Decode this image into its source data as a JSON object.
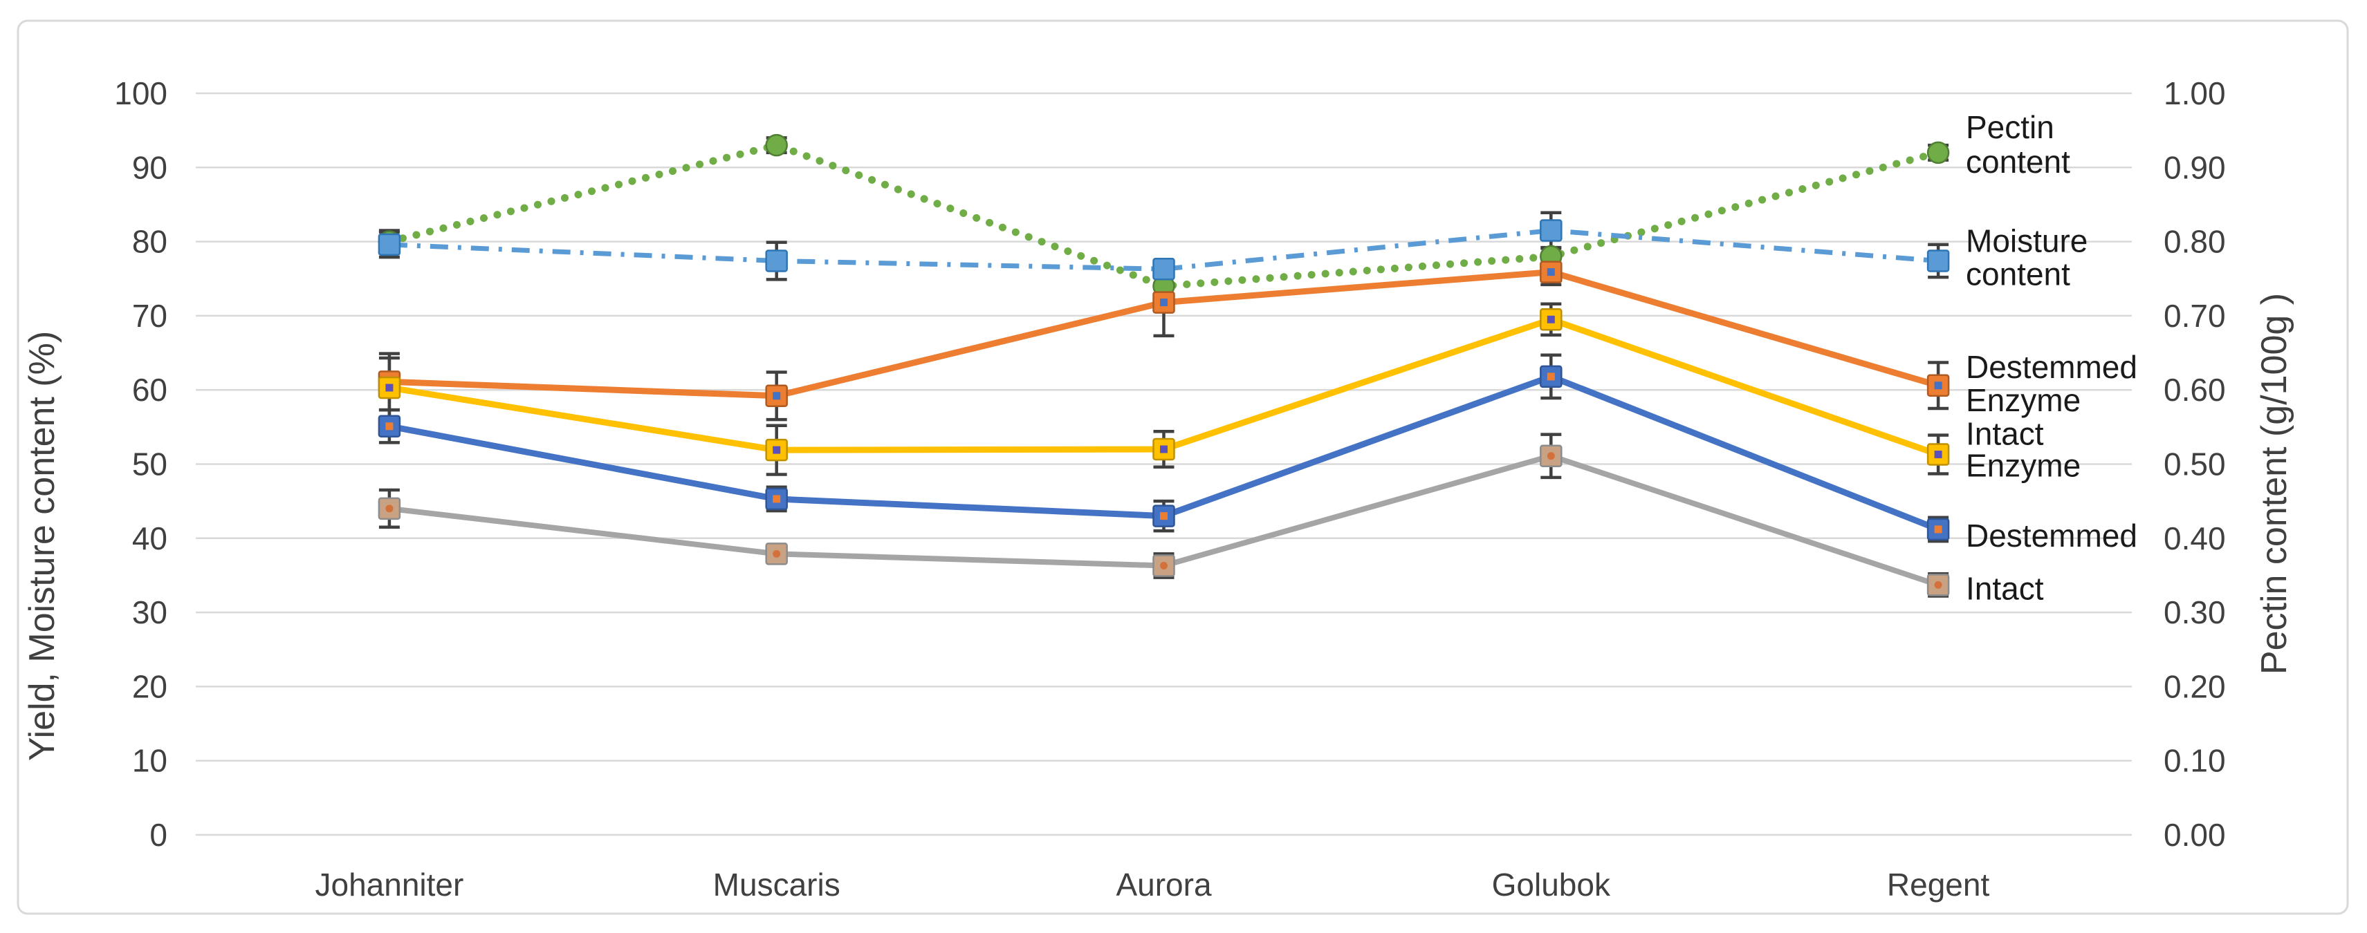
{
  "chart_data": {
    "type": "line",
    "title": "",
    "categories": [
      "Johanniter",
      "Muscaris",
      "Aurora",
      "Golubok",
      "Regent"
    ],
    "left_axis": {
      "title": "Yield, Moisture content (%)",
      "min": 0,
      "max": 100,
      "tick_step": 10,
      "ticks": [
        "100",
        "90",
        "80",
        "70",
        "60",
        "50",
        "40",
        "30",
        "20",
        "10",
        "0"
      ]
    },
    "right_axis": {
      "title": "Pectin content (g/100g )",
      "min": 0.0,
      "max": 1.0,
      "tick_step": 0.1,
      "ticks": [
        "1.00",
        "0.90",
        "0.80",
        "0.70",
        "0.60",
        "0.50",
        "0.40",
        "0.30",
        "0.20",
        "0.10",
        "0.00"
      ]
    },
    "grid": true,
    "legend_position": "labels-right-of-last-point",
    "gridline_color": "#D9D9D9",
    "border_color": "#D9D9D9",
    "background": "#FFFFFF",
    "error_bar_color": "#404040",
    "tick_text_color": "#404040",
    "series_label_color": "#1A1A1A",
    "series": [
      {
        "id": "pectin-content",
        "name": "Pectin content",
        "label_lines": [
          "Pectin",
          "content"
        ],
        "axis": "right",
        "unit": "g/100g",
        "color": "#70AD47",
        "line_style": "dotted",
        "marker": "circle",
        "values": [
          0.8,
          0.93,
          0.74,
          0.78,
          0.92
        ],
        "errors": [
          0.015,
          0.01,
          0.015,
          0.012,
          0.01
        ]
      },
      {
        "id": "moisture-content",
        "name": "Moisture content",
        "label_lines": [
          "Moisture",
          "content"
        ],
        "axis": "left",
        "unit": "%",
        "color": "#5B9BD5",
        "line_style": "dash-dot",
        "marker": "square",
        "values": [
          79.6,
          77.4,
          76.3,
          81.5,
          77.4
        ],
        "errors": [
          1.7,
          2.5,
          1.0,
          2.4,
          2.2
        ]
      },
      {
        "id": "destemmed-enzyme",
        "name": "Destemmed Enzyme",
        "label_lines": [
          "Destemmed",
          "Enzyme"
        ],
        "axis": "left",
        "unit": "%",
        "color": "#ED7D31",
        "line_style": "solid",
        "marker": "square-dot",
        "values": [
          61.1,
          59.2,
          71.8,
          75.9,
          60.6
        ],
        "errors": [
          3.8,
          3.2,
          4.5,
          1.7,
          3.1
        ]
      },
      {
        "id": "intact-enzyme",
        "name": "Intact Enzyme",
        "label_lines": [
          "Intact",
          "Enzyme"
        ],
        "axis": "left",
        "unit": "%",
        "color": "#FFC000",
        "line_style": "solid",
        "marker": "square-dot",
        "values": [
          60.3,
          51.9,
          52.0,
          69.5,
          51.3
        ],
        "errors": [
          4.0,
          3.3,
          2.4,
          2.1,
          2.6
        ]
      },
      {
        "id": "destemmed",
        "name": "Destemmed",
        "label_lines": [
          "Destemmed"
        ],
        "axis": "left",
        "unit": "%",
        "color": "#4472C4",
        "line_style": "solid",
        "marker": "square-dot",
        "values": [
          55.1,
          45.3,
          43.0,
          61.8,
          41.2
        ],
        "errors": [
          2.2,
          1.6,
          2.0,
          2.9,
          1.6
        ]
      },
      {
        "id": "intact",
        "name": "Intact",
        "label_lines": [
          "Intact"
        ],
        "axis": "left",
        "unit": "%",
        "color": "#A5A5A5",
        "line_style": "solid",
        "marker": "square-tan",
        "values": [
          44.0,
          37.9,
          36.3,
          51.1,
          33.7
        ],
        "errors": [
          2.5,
          0.9,
          1.6,
          2.9,
          1.5
        ]
      }
    ]
  }
}
